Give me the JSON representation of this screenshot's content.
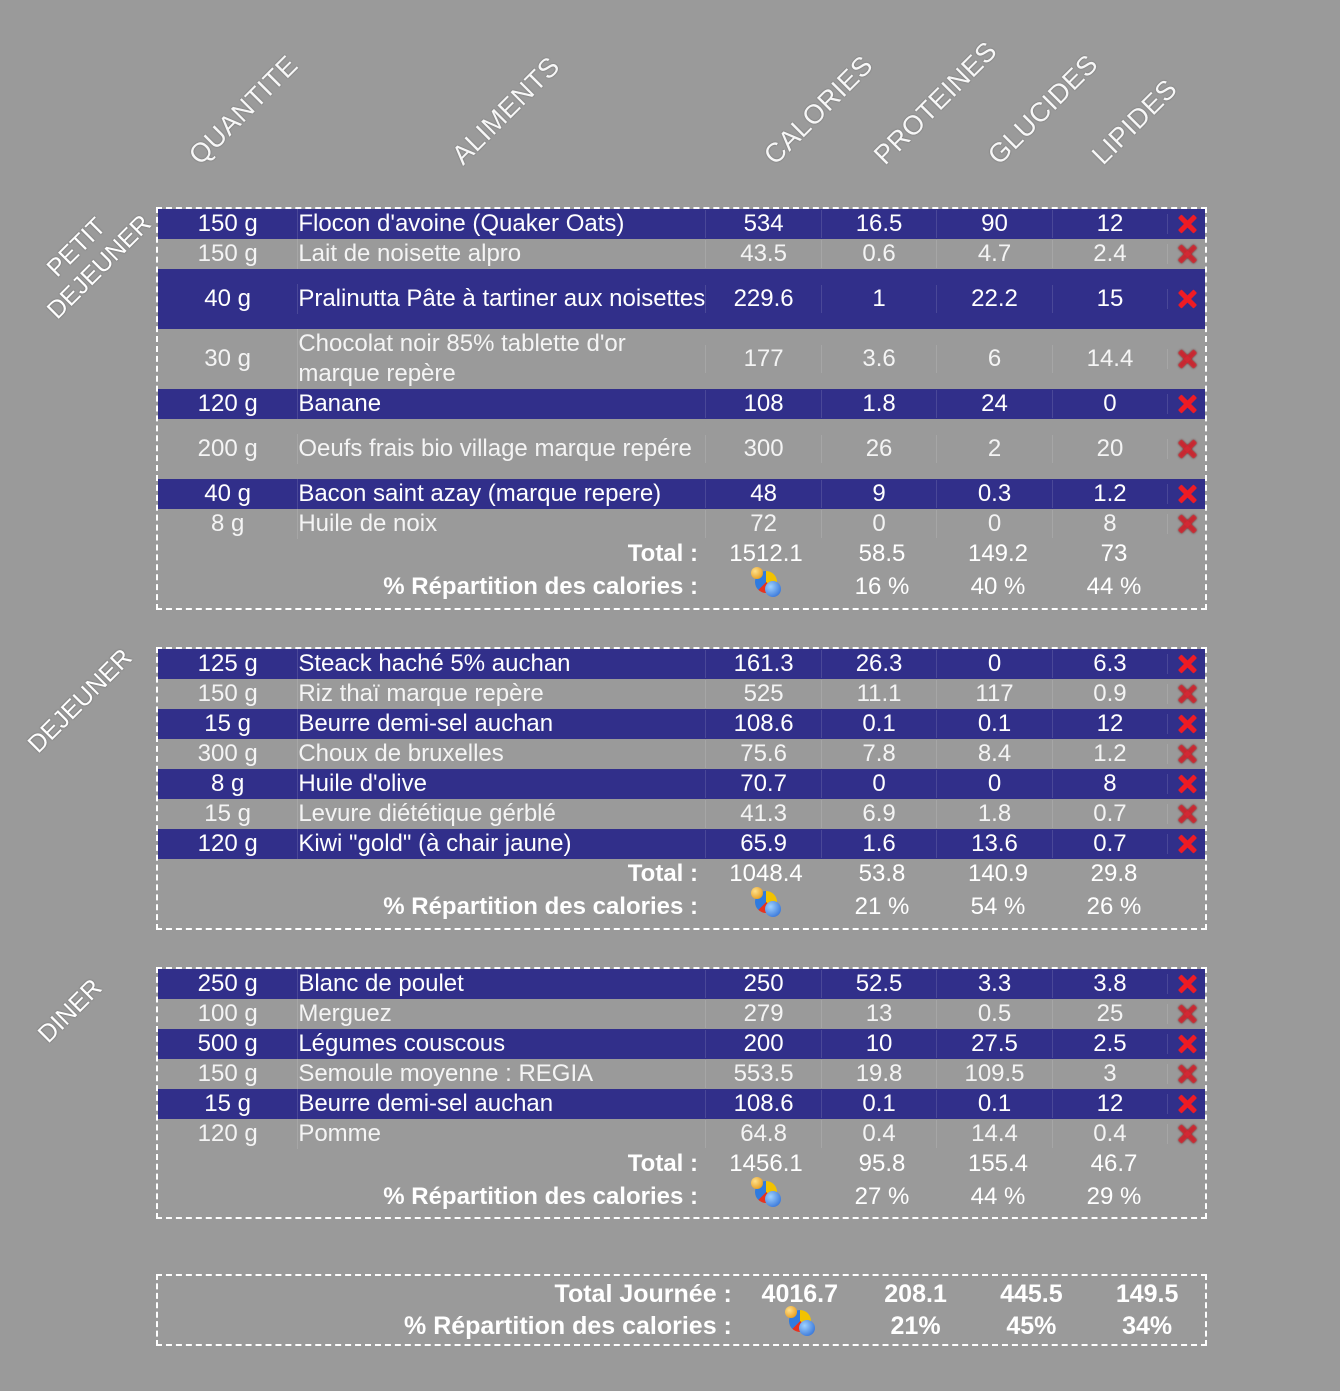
{
  "headers": {
    "quantite": "QUANTITE",
    "aliments": "ALIMENTS",
    "calories": "CALORIES",
    "proteines": "PROTEINES",
    "glucides": "GLUCIDES",
    "lipides": "LIPIDES"
  },
  "meals": [
    {
      "label_line1": "PETIT",
      "label_line2": "DEJEUNER",
      "rows": [
        {
          "qty": "150 g",
          "food": "Flocon d'avoine (Quaker Oats)",
          "cal": "534",
          "prot": "16.5",
          "gluc": "90",
          "lip": "12"
        },
        {
          "qty": "150 g",
          "food": "Lait de noisette alpro",
          "cal": "43.5",
          "prot": "0.6",
          "gluc": "4.7",
          "lip": "2.4"
        },
        {
          "qty": "40 g",
          "food": "Pralinutta Pâte à tartiner aux noisettes",
          "cal": "229.6",
          "prot": "1",
          "gluc": "22.2",
          "lip": "15"
        },
        {
          "qty": "30 g",
          "food": "Chocolat noir 85% tablette d'or marque repère",
          "cal": "177",
          "prot": "3.6",
          "gluc": "6",
          "lip": "14.4"
        },
        {
          "qty": "120 g",
          "food": "Banane",
          "cal": "108",
          "prot": "1.8",
          "gluc": "24",
          "lip": "0"
        },
        {
          "qty": "200 g",
          "food": "Oeufs frais bio village marque repére",
          "cal": "300",
          "prot": "26",
          "gluc": "2",
          "lip": "20"
        },
        {
          "qty": "40 g",
          "food": "Bacon saint azay (marque repere)",
          "cal": "48",
          "prot": "9",
          "gluc": "0.3",
          "lip": "1.2"
        },
        {
          "qty": "8 g",
          "food": "Huile de noix",
          "cal": "72",
          "prot": "0",
          "gluc": "0",
          "lip": "8"
        }
      ],
      "total_label": "Total :",
      "total": {
        "cal": "1512.1",
        "prot": "58.5",
        "gluc": "149.2",
        "lip": "73"
      },
      "rep_label": "% Répartition des calories :",
      "rep": {
        "prot": "16 %",
        "gluc": "40 %",
        "lip": "44 %"
      }
    },
    {
      "label_line1": "DEJEUNER",
      "label_line2": "",
      "rows": [
        {
          "qty": "125 g",
          "food": "Steack haché 5% auchan",
          "cal": "161.3",
          "prot": "26.3",
          "gluc": "0",
          "lip": "6.3"
        },
        {
          "qty": "150 g",
          "food": "Riz thaï marque repère",
          "cal": "525",
          "prot": "11.1",
          "gluc": "117",
          "lip": "0.9"
        },
        {
          "qty": "15 g",
          "food": "Beurre demi-sel auchan",
          "cal": "108.6",
          "prot": "0.1",
          "gluc": "0.1",
          "lip": "12"
        },
        {
          "qty": "300 g",
          "food": "Choux de bruxelles",
          "cal": "75.6",
          "prot": "7.8",
          "gluc": "8.4",
          "lip": "1.2"
        },
        {
          "qty": "8 g",
          "food": "Huile d'olive",
          "cal": "70.7",
          "prot": "0",
          "gluc": "0",
          "lip": "8"
        },
        {
          "qty": "15 g",
          "food": "Levure diététique gérblé",
          "cal": "41.3",
          "prot": "6.9",
          "gluc": "1.8",
          "lip": "0.7"
        },
        {
          "qty": "120 g",
          "food": "Kiwi \"gold\" (à chair jaune)",
          "cal": "65.9",
          "prot": "1.6",
          "gluc": "13.6",
          "lip": "0.7"
        }
      ],
      "total_label": "Total :",
      "total": {
        "cal": "1048.4",
        "prot": "53.8",
        "gluc": "140.9",
        "lip": "29.8"
      },
      "rep_label": "% Répartition des calories :",
      "rep": {
        "prot": "21 %",
        "gluc": "54 %",
        "lip": "26 %"
      }
    },
    {
      "label_line1": "DINER",
      "label_line2": "",
      "rows": [
        {
          "qty": "250 g",
          "food": "Blanc de poulet",
          "cal": "250",
          "prot": "52.5",
          "gluc": "3.3",
          "lip": "3.8"
        },
        {
          "qty": "100 g",
          "food": "Merguez",
          "cal": "279",
          "prot": "13",
          "gluc": "0.5",
          "lip": "25"
        },
        {
          "qty": "500 g",
          "food": "Légumes couscous",
          "cal": "200",
          "prot": "10",
          "gluc": "27.5",
          "lip": "2.5"
        },
        {
          "qty": "150 g",
          "food": "Semoule moyenne : REGIA",
          "cal": "553.5",
          "prot": "19.8",
          "gluc": "109.5",
          "lip": "3"
        },
        {
          "qty": "15 g",
          "food": "Beurre demi-sel auchan",
          "cal": "108.6",
          "prot": "0.1",
          "gluc": "0.1",
          "lip": "12"
        },
        {
          "qty": "120 g",
          "food": "Pomme",
          "cal": "64.8",
          "prot": "0.4",
          "gluc": "14.4",
          "lip": "0.4"
        }
      ],
      "total_label": "Total :",
      "total": {
        "cal": "1456.1",
        "prot": "95.8",
        "gluc": "155.4",
        "lip": "46.7"
      },
      "rep_label": "% Répartition des calories :",
      "rep": {
        "prot": "27 %",
        "gluc": "44 %",
        "lip": "29 %"
      }
    }
  ],
  "day": {
    "total_label": "Total Journée :",
    "total": {
      "cal": "4016.7",
      "prot": "208.1",
      "gluc": "445.5",
      "lip": "149.5"
    },
    "rep_label": "% Répartition des calories :",
    "rep": {
      "prot": "21%",
      "gluc": "45%",
      "lip": "34%"
    }
  },
  "icons": {
    "delete": "delete-x-icon",
    "chart": "pie-chart-icon"
  },
  "colors": {
    "background": "#9a9a9a",
    "row_highlight": "#312f8a",
    "delete": "#ee1b24"
  }
}
